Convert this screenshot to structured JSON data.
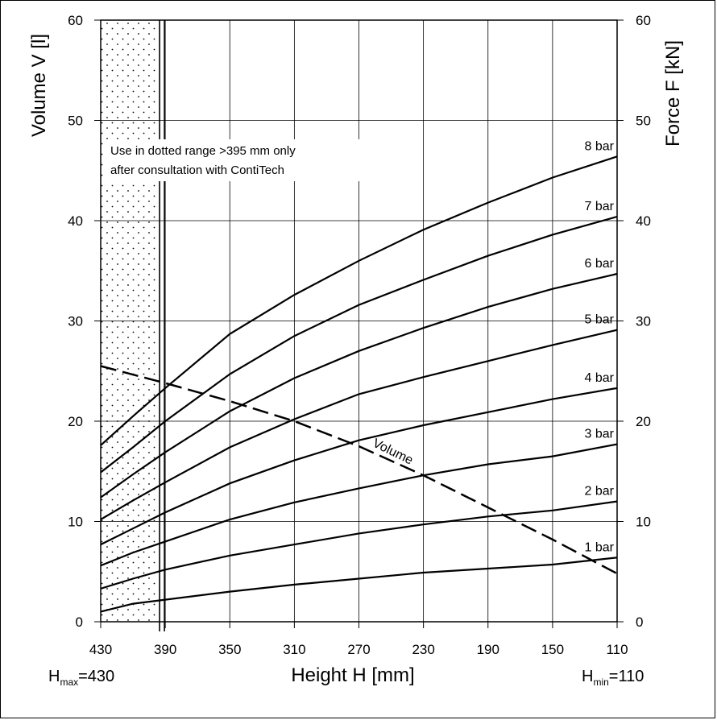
{
  "chart_data": {
    "type": "line",
    "xlabel": "Height H [mm]",
    "ylabel_left": "Volume V [l]",
    "ylabel_right": "Force F [kN]",
    "x_ticks": [
      430,
      390,
      350,
      310,
      270,
      230,
      190,
      150,
      110
    ],
    "y_ticks": [
      0,
      10,
      20,
      30,
      40,
      50,
      60
    ],
    "x_range": [
      430,
      110
    ],
    "y_range": [
      0,
      60
    ],
    "x_reversed": true,
    "grid": true,
    "dotted_range": [
      430,
      395
    ],
    "limit_line_x": 392,
    "note": [
      "Use in dotted range >395 mm only",
      "after consultation with ContiTech"
    ],
    "h_max": {
      "main": "H",
      "sub": "max",
      "value": "=430"
    },
    "h_min": {
      "main": "H",
      "sub": "min",
      "value": "=110"
    },
    "series": [
      {
        "name": "1 bar",
        "x": [
          430,
          410,
          390,
          350,
          310,
          270,
          230,
          190,
          150,
          110
        ],
        "y": [
          1.0,
          1.8,
          2.2,
          3.0,
          3.7,
          4.3,
          4.9,
          5.3,
          5.7,
          6.4
        ]
      },
      {
        "name": "2 bar",
        "x": [
          430,
          410,
          390,
          350,
          310,
          270,
          230,
          190,
          150,
          110
        ],
        "y": [
          3.3,
          4.3,
          5.2,
          6.6,
          7.7,
          8.8,
          9.7,
          10.5,
          11.1,
          12.0
        ]
      },
      {
        "name": "3 bar",
        "x": [
          430,
          410,
          390,
          350,
          310,
          270,
          230,
          190,
          150,
          110
        ],
        "y": [
          5.6,
          6.9,
          8.0,
          10.2,
          11.9,
          13.3,
          14.6,
          15.7,
          16.5,
          17.7
        ]
      },
      {
        "name": "4 bar",
        "x": [
          430,
          410,
          390,
          350,
          310,
          270,
          230,
          190,
          150,
          110
        ],
        "y": [
          7.7,
          9.3,
          10.9,
          13.8,
          16.1,
          18.1,
          19.6,
          20.9,
          22.2,
          23.3
        ]
      },
      {
        "name": "5 bar",
        "x": [
          430,
          410,
          390,
          350,
          310,
          270,
          230,
          190,
          150,
          110
        ],
        "y": [
          10.2,
          12.1,
          13.9,
          17.4,
          20.2,
          22.7,
          24.4,
          26.0,
          27.6,
          29.1
        ]
      },
      {
        "name": "6 bar",
        "x": [
          430,
          410,
          390,
          350,
          310,
          270,
          230,
          190,
          150,
          110
        ],
        "y": [
          12.4,
          14.7,
          16.9,
          21.0,
          24.3,
          27.0,
          29.3,
          31.4,
          33.2,
          34.7
        ]
      },
      {
        "name": "7 bar",
        "x": [
          430,
          410,
          390,
          350,
          310,
          270,
          230,
          190,
          150,
          110
        ],
        "y": [
          14.9,
          17.4,
          20.0,
          24.7,
          28.5,
          31.6,
          34.1,
          36.5,
          38.6,
          40.4
        ]
      },
      {
        "name": "8 bar",
        "x": [
          430,
          410,
          390,
          350,
          310,
          270,
          230,
          190,
          150,
          110
        ],
        "y": [
          17.6,
          20.5,
          23.3,
          28.7,
          32.6,
          36.0,
          39.1,
          41.8,
          44.3,
          46.4
        ]
      }
    ],
    "volume": {
      "name": "Volume",
      "x": [
        430,
        390,
        350,
        310,
        270,
        230,
        190,
        150,
        110
      ],
      "y": [
        25.5,
        23.8,
        22.0,
        20.0,
        17.5,
        14.6,
        11.4,
        8.2,
        4.8
      ]
    }
  }
}
